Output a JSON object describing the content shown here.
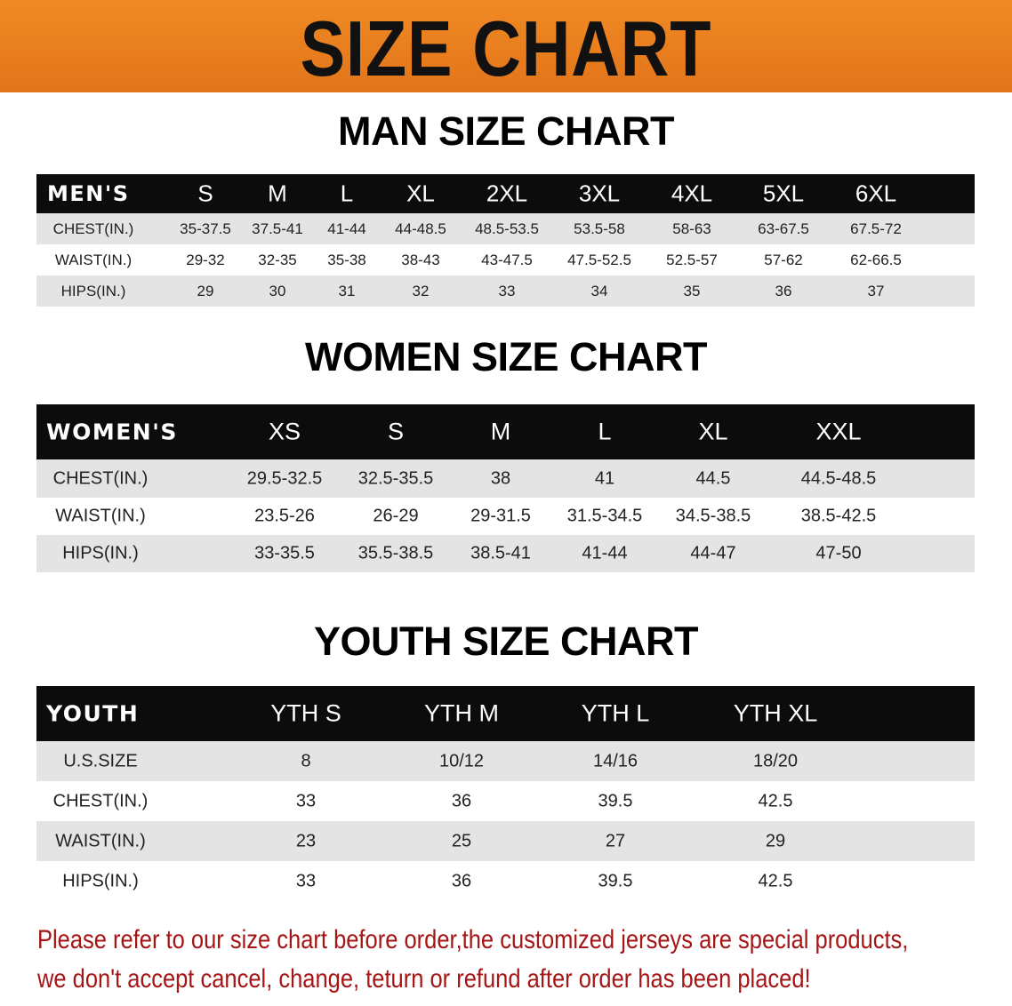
{
  "banner": {
    "title": "SIZE CHART"
  },
  "men": {
    "title": "MAN SIZE CHART",
    "header": [
      "MEN'S",
      "S",
      "M",
      "L",
      "XL",
      "2XL",
      "3XL",
      "4XL",
      "5XL",
      "6XL"
    ],
    "rows": [
      [
        "CHEST(IN.)",
        "35-37.5",
        "37.5-41",
        "41-44",
        "44-48.5",
        "48.5-53.5",
        "53.5-58",
        "58-63",
        "63-67.5",
        "67.5-72"
      ],
      [
        "WAIST(IN.)",
        "29-32",
        "32-35",
        "35-38",
        "38-43",
        "43-47.5",
        "47.5-52.5",
        "52.5-57",
        "57-62",
        "62-66.5"
      ],
      [
        "HIPS(IN.)",
        "29",
        "30",
        "31",
        "32",
        "33",
        "34",
        "35",
        "36",
        "37"
      ]
    ]
  },
  "women": {
    "title": "WOMEN SIZE CHART",
    "header": [
      "WOMEN'S",
      "XS",
      "S",
      "M",
      "L",
      "XL",
      "XXL"
    ],
    "rows": [
      [
        "CHEST(IN.)",
        "29.5-32.5",
        "32.5-35.5",
        "38",
        "41",
        "44.5",
        "44.5-48.5"
      ],
      [
        "WAIST(IN.)",
        "23.5-26",
        "26-29",
        "29-31.5",
        "31.5-34.5",
        "34.5-38.5",
        "38.5-42.5"
      ],
      [
        "HIPS(IN.)",
        "33-35.5",
        "35.5-38.5",
        "38.5-41",
        "41-44",
        "44-47",
        "47-50"
      ]
    ]
  },
  "youth": {
    "title": "YOUTH SIZE CHART",
    "header": [
      "YOUTH",
      "YTH S",
      "YTH M",
      "YTH L",
      "YTH XL"
    ],
    "rows": [
      [
        "U.S.SIZE",
        "8",
        "10/12",
        "14/16",
        "18/20"
      ],
      [
        "CHEST(IN.)",
        "33",
        "36",
        "39.5",
        "42.5"
      ],
      [
        "WAIST(IN.)",
        "23",
        "25",
        "27",
        "29"
      ],
      [
        "HIPS(IN.)",
        "33",
        "36",
        "39.5",
        "42.5"
      ]
    ]
  },
  "note": {
    "line1": "Please refer to our size chart before order,the customized jerseys are special products,",
    "line2": "we don't accept cancel, change, teturn or refund after order has been placed!",
    "color": "#a51515"
  }
}
